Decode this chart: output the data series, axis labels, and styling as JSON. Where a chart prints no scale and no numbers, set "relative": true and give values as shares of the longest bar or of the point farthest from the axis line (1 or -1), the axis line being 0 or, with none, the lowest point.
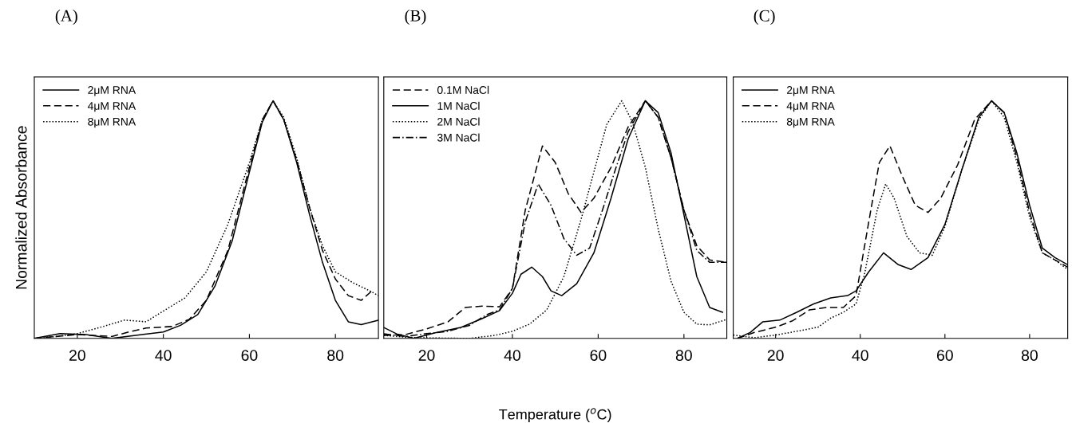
{
  "chart_data": [
    {
      "type": "line",
      "title": "(A)",
      "ylabel": "Normalized Absorbance",
      "relative": true,
      "xlim": [
        10,
        90
      ],
      "xticks": [
        20,
        40,
        60,
        80
      ],
      "legend": "top left",
      "grid": false,
      "marker": "none",
      "series": [
        {
          "name": "2μM RNA",
          "color": "#000000",
          "line_style": "solid",
          "x": [
            10,
            16,
            22,
            28,
            35,
            40,
            44,
            48,
            52,
            56,
            60,
            63,
            65.5,
            68,
            71,
            74,
            77,
            80,
            83,
            86,
            90
          ],
          "values": [
            0.0,
            0.02,
            0.016,
            0.0,
            0.016,
            0.027,
            0.055,
            0.1,
            0.22,
            0.41,
            0.7,
            0.91,
            1.0,
            0.92,
            0.74,
            0.52,
            0.32,
            0.16,
            0.07,
            0.058,
            0.077
          ]
        },
        {
          "name": "4μM RNA",
          "color": "#000000",
          "line_style": "dashed",
          "x": [
            10,
            20,
            28,
            32,
            36,
            42,
            46,
            50,
            55,
            60,
            63,
            65.5,
            68,
            71,
            74,
            77,
            80,
            83,
            86,
            88.5
          ],
          "values": [
            0.0,
            0.016,
            0.008,
            0.027,
            0.044,
            0.05,
            0.08,
            0.16,
            0.37,
            0.72,
            0.92,
            1.0,
            0.92,
            0.75,
            0.55,
            0.37,
            0.25,
            0.18,
            0.16,
            0.2
          ]
        },
        {
          "name": "8μM RNA",
          "color": "#000000",
          "line_style": "dotted",
          "x": [
            10,
            15,
            20,
            26,
            31,
            36,
            40,
            45,
            50,
            55,
            60,
            63,
            65.5,
            68,
            71,
            74,
            77,
            80,
            84,
            88,
            90
          ],
          "values": [
            0.0,
            0.008,
            0.02,
            0.05,
            0.077,
            0.07,
            0.115,
            0.17,
            0.28,
            0.48,
            0.74,
            0.92,
            1.0,
            0.93,
            0.76,
            0.55,
            0.39,
            0.28,
            0.235,
            0.2,
            0.18
          ]
        }
      ]
    },
    {
      "type": "line",
      "title": "(B)",
      "xlabel": "Temperature ($^{o}$C)",
      "relative": true,
      "xlim": [
        10,
        90
      ],
      "xticks": [
        20,
        40,
        60,
        80
      ],
      "legend": "top left",
      "grid": false,
      "marker": "none",
      "series": [
        {
          "name": "0.1M NaCl",
          "color": "#000000",
          "line_style": "dashed",
          "x": [
            10,
            15,
            20,
            25,
            29,
            33,
            37,
            40,
            43,
            47,
            50,
            53,
            56,
            59,
            63,
            67,
            71,
            74,
            77,
            80,
            83,
            86,
            90
          ],
          "values": [
            0.013,
            0.016,
            0.04,
            0.07,
            0.13,
            0.136,
            0.133,
            0.21,
            0.54,
            0.81,
            0.74,
            0.61,
            0.53,
            0.59,
            0.72,
            0.89,
            1.0,
            0.93,
            0.76,
            0.54,
            0.39,
            0.33,
            0.32
          ]
        },
        {
          "name": "1M NaCl",
          "color": "#000000",
          "line_style": "solid",
          "x": [
            10,
            13,
            17,
            22,
            28,
            33,
            37,
            40,
            42,
            44.5,
            47,
            49,
            51.5,
            55,
            59,
            63,
            67,
            71,
            74,
            77,
            80,
            83,
            86,
            89
          ],
          "values": [
            0.046,
            0.019,
            0.0,
            0.024,
            0.046,
            0.084,
            0.117,
            0.19,
            0.27,
            0.3,
            0.26,
            0.2,
            0.18,
            0.23,
            0.36,
            0.59,
            0.84,
            1.0,
            0.95,
            0.78,
            0.52,
            0.26,
            0.13,
            0.11
          ]
        },
        {
          "name": "2M NaCl",
          "color": "#000000",
          "line_style": "dotted",
          "x": [
            10,
            15,
            20,
            30,
            36,
            40,
            44,
            48,
            52,
            56,
            59,
            62,
            65.5,
            68,
            71,
            74,
            77,
            80,
            83,
            86,
            90
          ],
          "values": [
            0.013,
            0.005,
            0.002,
            0.0,
            0.013,
            0.03,
            0.06,
            0.12,
            0.26,
            0.5,
            0.7,
            0.9,
            1.0,
            0.91,
            0.72,
            0.46,
            0.24,
            0.11,
            0.06,
            0.057,
            0.08
          ]
        },
        {
          "name": "3M NaCl",
          "color": "#000000",
          "line_style": "dashdot",
          "x": [
            10,
            15,
            20,
            25,
            30,
            34,
            37,
            40,
            43,
            46,
            49,
            52,
            55,
            58,
            61,
            64,
            67,
            71,
            74,
            77,
            80,
            83,
            86,
            90
          ],
          "values": [
            0.019,
            0.008,
            0.02,
            0.03,
            0.055,
            0.1,
            0.12,
            0.21,
            0.49,
            0.65,
            0.56,
            0.42,
            0.35,
            0.38,
            0.54,
            0.71,
            0.87,
            1.0,
            0.93,
            0.76,
            0.54,
            0.37,
            0.32,
            0.32
          ]
        }
      ]
    },
    {
      "type": "line",
      "title": "(C)",
      "relative": true,
      "xlim": [
        10,
        89
      ],
      "xticks": [
        20,
        40,
        60,
        80
      ],
      "legend": "top left",
      "grid": false,
      "marker": "none",
      "series": [
        {
          "name": "2μM RNA",
          "color": "#000000",
          "line_style": "solid",
          "x": [
            11,
            14,
            17,
            21,
            25,
            29,
            33,
            37,
            39,
            42,
            45.5,
            49,
            52,
            56,
            60,
            64,
            68,
            71,
            74,
            77,
            80,
            83,
            86,
            89
          ],
          "values": [
            0.0,
            0.025,
            0.07,
            0.077,
            0.11,
            0.145,
            0.17,
            0.18,
            0.2,
            0.28,
            0.36,
            0.31,
            0.29,
            0.34,
            0.48,
            0.71,
            0.93,
            1.0,
            0.95,
            0.78,
            0.56,
            0.38,
            0.34,
            0.31
          ]
        },
        {
          "name": "4μM RNA",
          "color": "#000000",
          "line_style": "dashed",
          "x": [
            11,
            15,
            20,
            24,
            28,
            32,
            36,
            39,
            42,
            44.5,
            47,
            50,
            53,
            56,
            59,
            63,
            67,
            71,
            74,
            77,
            80,
            83,
            86,
            89
          ],
          "values": [
            0.0,
            0.025,
            0.047,
            0.074,
            0.12,
            0.13,
            0.13,
            0.18,
            0.49,
            0.74,
            0.81,
            0.68,
            0.56,
            0.53,
            0.59,
            0.73,
            0.92,
            1.0,
            0.95,
            0.76,
            0.53,
            0.36,
            0.33,
            0.3
          ]
        },
        {
          "name": "8μM RNA",
          "color": "#000000",
          "line_style": "dotted",
          "x": [
            10,
            15,
            20,
            25,
            30,
            33,
            36,
            39,
            41,
            44,
            46,
            48,
            51,
            54,
            57,
            60,
            64,
            68,
            71,
            74,
            77,
            80,
            83,
            86,
            89
          ],
          "values": [
            0.014,
            0.003,
            0.014,
            0.03,
            0.047,
            0.085,
            0.11,
            0.145,
            0.27,
            0.54,
            0.65,
            0.59,
            0.43,
            0.36,
            0.35,
            0.47,
            0.71,
            0.92,
            1.0,
            0.93,
            0.74,
            0.51,
            0.36,
            0.33,
            0.29
          ]
        }
      ]
    }
  ]
}
